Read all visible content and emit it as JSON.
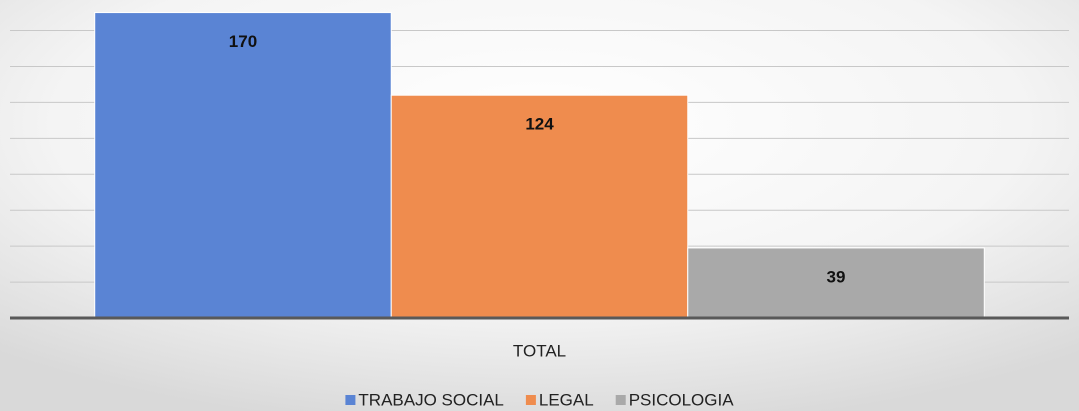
{
  "chart_data": {
    "type": "bar",
    "categories": [
      "TOTAL"
    ],
    "series": [
      {
        "name": "TRABAJO SOCIAL",
        "color": "#5a84d4",
        "values": [
          170
        ]
      },
      {
        "name": "LEGAL",
        "color": "#ef8c4e",
        "values": [
          124
        ]
      },
      {
        "name": "PSICOLOGIA",
        "color": "#a9a9a9",
        "values": [
          39
        ]
      }
    ],
    "ylim": [
      0,
      177
    ],
    "yticks": [
      0,
      20,
      40,
      60,
      80,
      100,
      120,
      140,
      160
    ],
    "grid": true,
    "legend": "bottom"
  }
}
